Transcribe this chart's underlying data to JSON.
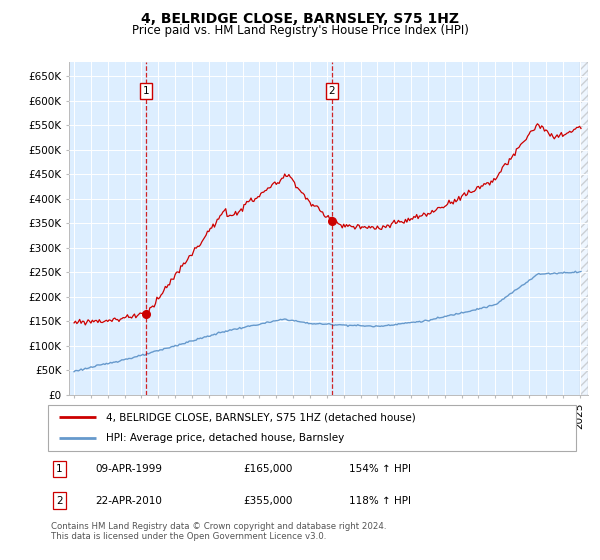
{
  "title": "4, BELRIDGE CLOSE, BARNSLEY, S75 1HZ",
  "subtitle": "Price paid vs. HM Land Registry's House Price Index (HPI)",
  "ylim": [
    0,
    680000
  ],
  "yticks": [
    0,
    50000,
    100000,
    150000,
    200000,
    250000,
    300000,
    350000,
    400000,
    450000,
    500000,
    550000,
    600000,
    650000
  ],
  "ytick_labels": [
    "£0",
    "£50K",
    "£100K",
    "£150K",
    "£200K",
    "£250K",
    "£300K",
    "£350K",
    "£400K",
    "£450K",
    "£500K",
    "£550K",
    "£600K",
    "£650K"
  ],
  "sale1_date_num": 1999.27,
  "sale1_price": 165000,
  "sale1_label": "1",
  "sale1_date_str": "09-APR-1999",
  "sale1_hpi_pct": "154% ↑ HPI",
  "sale2_date_num": 2010.31,
  "sale2_price": 355000,
  "sale2_label": "2",
  "sale2_date_str": "22-APR-2010",
  "sale2_hpi_pct": "118% ↑ HPI",
  "line1_color": "#cc0000",
  "line2_color": "#6699cc",
  "sale_marker_color": "#cc0000",
  "vline_color": "#cc0000",
  "legend_label1": "4, BELRIDGE CLOSE, BARNSLEY, S75 1HZ (detached house)",
  "legend_label2": "HPI: Average price, detached house, Barnsley",
  "footer": "Contains HM Land Registry data © Crown copyright and database right 2024.\nThis data is licensed under the Open Government Licence v3.0.",
  "bg_color": "#ddeeff",
  "title_fontsize": 10,
  "subtitle_fontsize": 8.5,
  "tick_fontsize": 7.5,
  "xlim_left": 1994.7,
  "xlim_right": 2025.5
}
